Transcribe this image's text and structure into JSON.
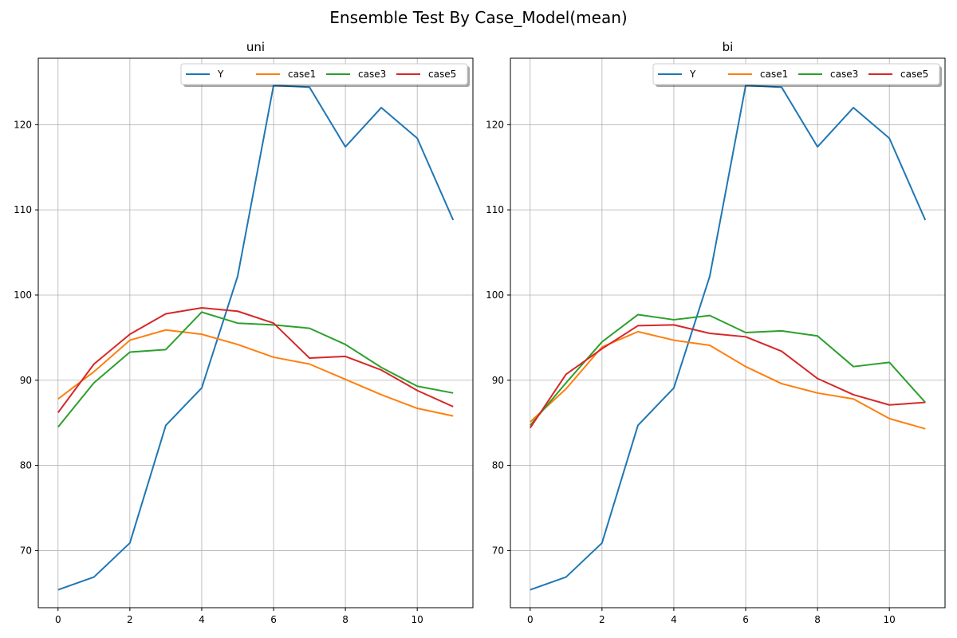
{
  "figure": {
    "title": "Ensemble Test By Case_Model(mean)"
  },
  "colors": {
    "Y": "#1f77b4",
    "case1": "#ff7f0e",
    "case3": "#2ca02c",
    "case5": "#d62728",
    "grid": "#b0b0b0"
  },
  "chart_data": [
    {
      "type": "line",
      "title": "uni",
      "xlabel": "",
      "ylabel": "",
      "xlim": [
        -0.55,
        11.55
      ],
      "ylim": [
        63.3,
        127.8
      ],
      "xticks": [
        0,
        2,
        4,
        6,
        8,
        10
      ],
      "yticks": [
        70,
        80,
        90,
        100,
        110,
        120
      ],
      "grid": true,
      "legend": {
        "placement": "top-right",
        "columns": 4
      },
      "x": [
        0,
        1,
        2,
        3,
        4,
        5,
        6,
        7,
        8,
        9,
        10,
        11
      ],
      "series": [
        {
          "name": "Y",
          "values": [
            65.4,
            66.9,
            70.9,
            84.7,
            89.1,
            102.2,
            124.6,
            124.4,
            117.4,
            122.0,
            118.4,
            108.8
          ]
        },
        {
          "name": "case1",
          "values": [
            87.8,
            91.0,
            94.7,
            95.9,
            95.4,
            94.2,
            92.7,
            91.9,
            90.1,
            88.3,
            86.7,
            85.8
          ]
        },
        {
          "name": "case3",
          "values": [
            84.5,
            89.7,
            93.3,
            93.6,
            98.0,
            96.7,
            96.5,
            96.1,
            94.2,
            91.5,
            89.3,
            88.5
          ]
        },
        {
          "name": "case5",
          "values": [
            86.2,
            91.9,
            95.4,
            97.8,
            98.5,
            98.1,
            96.7,
            92.6,
            92.8,
            91.2,
            88.8,
            86.9
          ]
        }
      ]
    },
    {
      "type": "line",
      "title": "bi",
      "xlabel": "",
      "ylabel": "",
      "xlim": [
        -0.55,
        11.55
      ],
      "ylim": [
        63.3,
        127.8
      ],
      "xticks": [
        0,
        2,
        4,
        6,
        8,
        10
      ],
      "yticks": [
        70,
        80,
        90,
        100,
        110,
        120
      ],
      "grid": true,
      "legend": {
        "placement": "top-right",
        "columns": 4
      },
      "x": [
        0,
        1,
        2,
        3,
        4,
        5,
        6,
        7,
        8,
        9,
        10,
        11
      ],
      "series": [
        {
          "name": "Y",
          "values": [
            65.4,
            66.9,
            70.9,
            84.7,
            89.1,
            102.2,
            124.6,
            124.4,
            117.4,
            122.0,
            118.4,
            108.8
          ]
        },
        {
          "name": "case1",
          "values": [
            85.1,
            89.0,
            93.9,
            95.7,
            94.7,
            94.1,
            91.6,
            89.6,
            88.5,
            87.8,
            85.5,
            84.3
          ]
        },
        {
          "name": "case3",
          "values": [
            84.7,
            89.7,
            94.5,
            97.7,
            97.1,
            97.6,
            95.6,
            95.8,
            95.2,
            91.6,
            92.1,
            87.4
          ]
        },
        {
          "name": "case5",
          "values": [
            84.4,
            90.7,
            93.7,
            96.4,
            96.5,
            95.5,
            95.1,
            93.4,
            90.2,
            88.3,
            87.1,
            87.4
          ]
        }
      ]
    }
  ]
}
